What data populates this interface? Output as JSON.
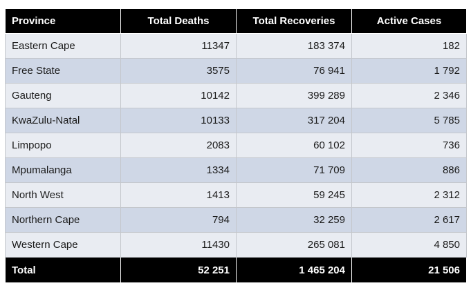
{
  "table": {
    "headers": [
      "Province",
      "Total Deaths",
      "Total Recoveries",
      "Active Cases"
    ],
    "rows": [
      [
        "Eastern Cape",
        "11347",
        "183 374",
        "182"
      ],
      [
        "Free State",
        "3575",
        "76 941",
        "1 792"
      ],
      [
        "Gauteng",
        "10142",
        "399 289",
        "2 346"
      ],
      [
        "KwaZulu-Natal",
        "10133",
        "317 204",
        "5 785"
      ],
      [
        "Limpopo",
        "2083",
        "60 102",
        "736"
      ],
      [
        "Mpumalanga",
        "1334",
        "71 709",
        "886"
      ],
      [
        "North West",
        "1413",
        "59 245",
        "2 312"
      ],
      [
        "Northern Cape",
        "794",
        "32 259",
        "2 617"
      ],
      [
        "Western Cape",
        "11430",
        "265 081",
        "4 850"
      ]
    ],
    "total": [
      "Total",
      "52 251",
      "1 465 204",
      "21 506"
    ]
  },
  "colors": {
    "header_bg": "#000000",
    "header_text": "#ffffff",
    "row_light": "#e9ecf2",
    "row_dark": "#cfd7e6"
  }
}
